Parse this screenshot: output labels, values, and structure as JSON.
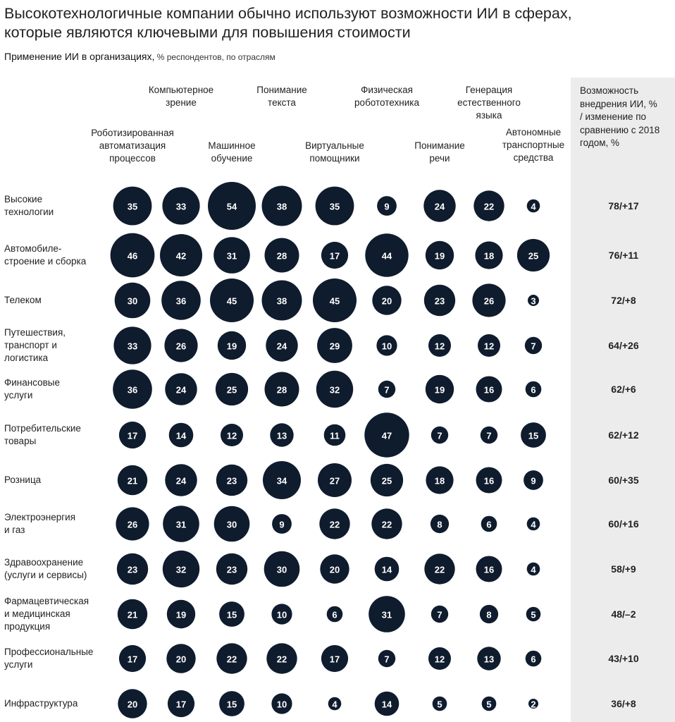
{
  "title": {
    "line1": "Высокотехнологичные компании обычно используют возможности ИИ в сферах,",
    "line2": "которые являются ключевыми для повышения стоимости"
  },
  "subtitle": {
    "main": "Применение ИИ в организациях,",
    "note": " % респондентов, по отраслям"
  },
  "chart_data": {
    "type": "bubble-matrix",
    "value_column_header": [
      "Возможность",
      "внедрения ИИ, %",
      "/ изменение по",
      "сравнению с 2018",
      "годом, %"
    ],
    "categories": [
      {
        "name": "Роботизированная автоматизация процессов",
        "lines": [
          "Роботизированная",
          "автоматизация",
          "процессов"
        ]
      },
      {
        "name": "Компьютерное зрение",
        "lines": [
          "Компьютерное",
          "зрение"
        ]
      },
      {
        "name": "Машинное обучение",
        "lines": [
          "Машинное",
          "обучение"
        ]
      },
      {
        "name": "Понимание текста",
        "lines": [
          "Понимание",
          "текста"
        ]
      },
      {
        "name": "Виртуальные помощники",
        "lines": [
          "Виртуальные",
          "помощники"
        ]
      },
      {
        "name": "Физическая робототехника",
        "lines": [
          "Физическая",
          "робототехника"
        ]
      },
      {
        "name": "Понимание речи",
        "lines": [
          "Понимание",
          "речи"
        ]
      },
      {
        "name": "Генерация естественного языка",
        "lines": [
          "Генерация",
          "естественного",
          "языка"
        ]
      },
      {
        "name": "Автономные транспортные средства",
        "lines": [
          "Автономные",
          "транспортные",
          "средства"
        ]
      }
    ],
    "rows": [
      {
        "industry": "Высокие технологии",
        "lines": [
          "Высокие",
          "технологии"
        ],
        "values": [
          35,
          33,
          54,
          38,
          35,
          9,
          24,
          22,
          4
        ],
        "adoption": "78/+17"
      },
      {
        "industry": "Автомобилестроение и сборка",
        "lines": [
          "Автомобиле-",
          "строение и сборка"
        ],
        "values": [
          46,
          42,
          31,
          28,
          17,
          44,
          19,
          18,
          25
        ],
        "adoption": "76/+11"
      },
      {
        "industry": "Телеком",
        "lines": [
          "Телеком"
        ],
        "values": [
          30,
          36,
          45,
          38,
          45,
          20,
          23,
          26,
          3
        ],
        "adoption": "72/+8"
      },
      {
        "industry": "Путешествия, транспорт и логистика",
        "lines": [
          "Путешествия,",
          "транспорт и",
          "логистика"
        ],
        "values": [
          33,
          26,
          19,
          24,
          29,
          10,
          12,
          12,
          7
        ],
        "adoption": "64/+26"
      },
      {
        "industry": "Финансовые услуги",
        "lines": [
          "Финансовые",
          "услуги"
        ],
        "values": [
          36,
          24,
          25,
          28,
          32,
          7,
          19,
          16,
          6
        ],
        "adoption": "62/+6"
      },
      {
        "industry": "Потребительские товары",
        "lines": [
          "Потребительские",
          "товары"
        ],
        "values": [
          17,
          14,
          12,
          13,
          11,
          47,
          7,
          7,
          15
        ],
        "adoption": "62/+12"
      },
      {
        "industry": "Розница",
        "lines": [
          "Розница"
        ],
        "values": [
          21,
          24,
          23,
          34,
          27,
          25,
          18,
          16,
          9
        ],
        "adoption": "60/+35"
      },
      {
        "industry": "Электроэнергия и газ",
        "lines": [
          "Электроэнергия",
          "и газ"
        ],
        "values": [
          26,
          31,
          30,
          9,
          22,
          22,
          8,
          6,
          4
        ],
        "adoption": "60/+16"
      },
      {
        "industry": "Здравоохранение (услуги и сервисы)",
        "lines": [
          "Здравоохранение",
          "(услуги и сервисы)"
        ],
        "values": [
          23,
          32,
          23,
          30,
          20,
          14,
          22,
          16,
          4
        ],
        "adoption": "58/+9"
      },
      {
        "industry": "Фармацевтическая и медицинская продукция",
        "lines": [
          "Фармацевтическая",
          "и медицинская",
          "продукция"
        ],
        "values": [
          21,
          19,
          15,
          10,
          6,
          31,
          7,
          8,
          5
        ],
        "adoption": "48/–2"
      },
      {
        "industry": "Профессиональные услуги",
        "lines": [
          "Профессиональные",
          "услуги"
        ],
        "values": [
          17,
          20,
          22,
          22,
          17,
          7,
          12,
          13,
          6
        ],
        "adoption": "43/+10"
      },
      {
        "industry": "Инфраструктура",
        "lines": [
          "Инфраструктура"
        ],
        "values": [
          20,
          17,
          15,
          10,
          4,
          14,
          5,
          5,
          2
        ],
        "adoption": "36/+8"
      }
    ],
    "bubble_color": "#0f1c2e",
    "label_color": "#ffffff",
    "panel_color": "#ececec"
  }
}
